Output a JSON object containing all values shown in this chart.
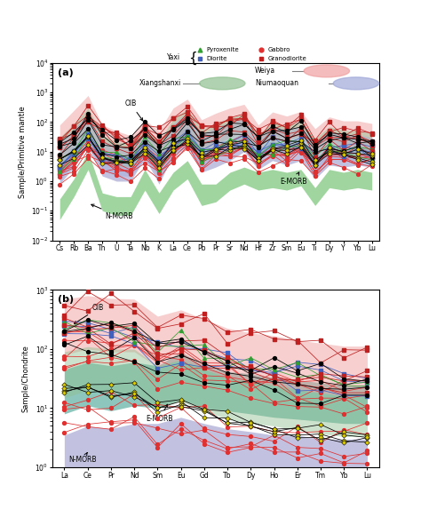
{
  "panel_a": {
    "elements": [
      "Cs",
      "Rb",
      "Ba",
      "Th",
      "U",
      "Ta",
      "Nb",
      "K",
      "La",
      "Ce",
      "Pb",
      "Pr",
      "Sr",
      "Nd",
      "Hf",
      "Zr",
      "Sm",
      "Eu",
      "Ti",
      "Dy",
      "Y",
      "Yb",
      "Lu"
    ],
    "ylabel": "Sample/Primitive mantle",
    "title": "(a)",
    "ylim": [
      0.01,
      10000
    ],
    "n_morb_lo": [
      0.05,
      0.3,
      2.5,
      0.1,
      0.07,
      0.07,
      0.5,
      0.08,
      0.5,
      1.2,
      0.15,
      0.2,
      0.5,
      0.8,
      0.5,
      0.6,
      0.5,
      0.7,
      0.15,
      0.6,
      0.5,
      0.6,
      0.5
    ],
    "n_morb_hi": [
      0.25,
      1.2,
      10,
      0.4,
      0.3,
      0.3,
      2.5,
      0.4,
      2.0,
      5.0,
      0.8,
      0.8,
      2.0,
      3.0,
      2.0,
      2.5,
      2.0,
      2.5,
      0.6,
      2.5,
      2.0,
      2.5,
      2.0
    ],
    "e_morb_lo": [
      0.8,
      3,
      15,
      1.5,
      1.0,
      1.0,
      6,
      0.8,
      8,
      15,
      2.0,
      3.0,
      5,
      10,
      2.5,
      5,
      3.5,
      5,
      1.2,
      3.5,
      3.0,
      3.5,
      3.0
    ],
    "e_morb_hi": [
      5,
      15,
      80,
      7,
      5,
      5,
      30,
      4,
      35,
      70,
      12,
      14,
      25,
      45,
      12,
      25,
      15,
      22,
      6,
      15,
      12,
      15,
      12
    ],
    "weiya_lo": [
      5,
      15,
      60,
      8,
      5,
      4,
      12,
      4,
      20,
      50,
      10,
      18,
      30,
      50,
      15,
      35,
      25,
      35,
      8,
      20,
      15,
      15,
      12
    ],
    "weiya_hi": [
      80,
      250,
      800,
      80,
      50,
      35,
      120,
      50,
      300,
      600,
      120,
      200,
      300,
      400,
      80,
      220,
      160,
      230,
      60,
      150,
      110,
      110,
      90
    ],
    "xshan_lo": [
      2,
      6,
      25,
      4,
      3,
      3,
      8,
      3,
      10,
      25,
      5,
      10,
      15,
      25,
      8,
      18,
      12,
      18,
      4,
      10,
      8,
      8,
      6
    ],
    "xshan_hi": [
      30,
      90,
      300,
      35,
      22,
      18,
      55,
      22,
      130,
      280,
      55,
      90,
      140,
      190,
      38,
      100,
      75,
      105,
      28,
      70,
      52,
      52,
      42
    ],
    "niuma_lo": [
      1,
      4,
      15,
      2.5,
      1.5,
      1.5,
      5,
      1.5,
      6,
      15,
      3,
      6,
      9,
      14,
      5,
      10,
      7,
      10,
      2.5,
      6,
      5,
      5,
      4
    ],
    "niuma_hi": [
      20,
      60,
      200,
      25,
      15,
      12,
      40,
      15,
      90,
      200,
      40,
      65,
      100,
      140,
      28,
      75,
      55,
      75,
      20,
      50,
      38,
      38,
      30
    ],
    "weiya_color": "#f0a0a0",
    "xshan_color": "#90c090",
    "niuma_color": "#a0a8d8",
    "nmorb_color": "#80c880",
    "emorb_color": "#9090c8"
  },
  "panel_b": {
    "elements": [
      "La",
      "Ce",
      "Pr",
      "Nd",
      "Sm",
      "Eu",
      "Gd",
      "Tb",
      "Dy",
      "Ho",
      "Er",
      "Tm",
      "Yb",
      "Lu"
    ],
    "ylabel": "Sample/Chondrite",
    "title": "(b)",
    "ylim": [
      1,
      1000
    ],
    "n_morb_lo": [
      0.5,
      0.7,
      0.6,
      0.8,
      0.8,
      0.8,
      0.8,
      0.7,
      0.65,
      0.6,
      0.6,
      0.55,
      0.55,
      0.55
    ],
    "n_morb_hi": [
      3.5,
      5,
      4.5,
      5.5,
      5.5,
      7,
      5.5,
      4.5,
      4.0,
      3.5,
      3.5,
      3.0,
      3.0,
      3.0
    ],
    "e_morb_lo": [
      8,
      11,
      9,
      11,
      10,
      14,
      10,
      9,
      8,
      7,
      6.5,
      6,
      5.5,
      5.5
    ],
    "e_morb_hi": [
      45,
      60,
      52,
      60,
      52,
      90,
      52,
      42,
      38,
      33,
      30,
      27,
      24,
      24
    ],
    "weiya_lo": [
      80,
      100,
      90,
      90,
      50,
      65,
      45,
      32,
      27,
      24,
      20,
      18,
      16,
      16
    ],
    "weiya_hi": [
      700,
      800,
      720,
      700,
      360,
      460,
      320,
      225,
      188,
      168,
      142,
      126,
      112,
      112
    ],
    "xshan_lo": [
      15,
      20,
      18,
      18,
      10,
      13,
      9,
      6.5,
      5.5,
      5,
      4.2,
      3.7,
      3.3,
      3.3
    ],
    "xshan_hi": [
      90,
      110,
      100,
      100,
      52,
      66,
      46,
      33,
      28,
      25,
      21,
      18,
      16,
      16
    ],
    "weiya_color": "#f0a0a0",
    "xshan_color": "#90c090",
    "niuma_color": "#a0a8d8",
    "nmorb_color": "#9090c8",
    "emorb_color": "#50a898"
  },
  "colors": {
    "gabbro": "#e03030",
    "diorite": "#4060c0",
    "pyroxenite": "#30a030",
    "granodiorite": "#c02020",
    "black": "#000000",
    "yellow_x": "#ddcc00"
  }
}
